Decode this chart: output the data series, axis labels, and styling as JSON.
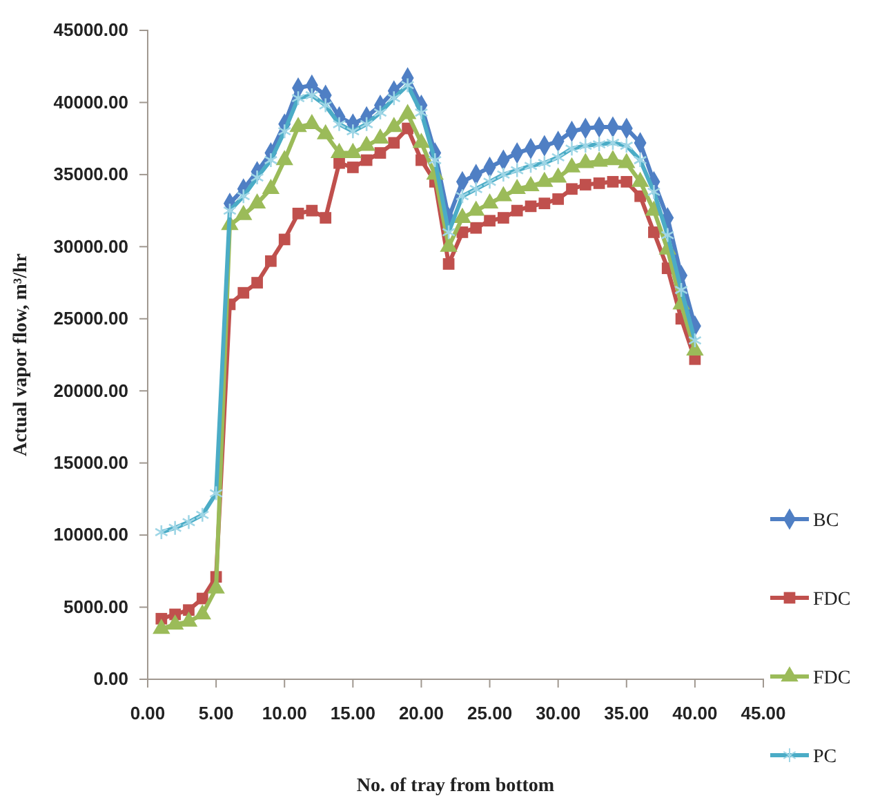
{
  "chart_data": {
    "type": "line",
    "xlabel": "No. of tray from bottom",
    "ylabel": "Actual vapor flow, m³/hr",
    "x": [
      1,
      2,
      3,
      4,
      5,
      6,
      7,
      8,
      9,
      10,
      11,
      12,
      13,
      14,
      15,
      16,
      17,
      18,
      19,
      20,
      21,
      22,
      23,
      24,
      25,
      26,
      27,
      28,
      29,
      30,
      31,
      32,
      33,
      34,
      35,
      36,
      37,
      38,
      39,
      40
    ],
    "series": [
      {
        "name": "BC",
        "color": "#4f7fc4",
        "marker": "diamond",
        "values": [
          null,
          null,
          null,
          null,
          null,
          33000,
          34000,
          35200,
          36500,
          38500,
          41000,
          41200,
          40500,
          39000,
          38500,
          39000,
          39800,
          40800,
          41700,
          39800,
          36500,
          32000,
          34500,
          35000,
          35500,
          36000,
          36500,
          36800,
          37000,
          37300,
          38000,
          38200,
          38300,
          38300,
          38200,
          37200,
          34500,
          32000,
          28000,
          24500
        ]
      },
      {
        "name": "FDC",
        "color": "#c0504d",
        "marker": "square",
        "values": [
          4200,
          4500,
          4800,
          5600,
          7100,
          26000,
          26800,
          27500,
          29000,
          30500,
          32300,
          32500,
          32000,
          35800,
          35500,
          36000,
          36500,
          37200,
          38200,
          36000,
          34500,
          28800,
          31000,
          31300,
          31800,
          32000,
          32500,
          32800,
          33000,
          33300,
          34000,
          34300,
          34400,
          34500,
          34500,
          33500,
          31000,
          28500,
          25000,
          22200
        ]
      },
      {
        "name": "FDC",
        "color": "#9bbb59",
        "marker": "triangle",
        "values": [
          3500,
          3800,
          4000,
          4500,
          6300,
          31500,
          32200,
          33000,
          34000,
          36000,
          38300,
          38500,
          37800,
          36500,
          36500,
          37000,
          37500,
          38300,
          39200,
          37200,
          35000,
          30000,
          32000,
          32500,
          33000,
          33500,
          34000,
          34200,
          34500,
          34800,
          35500,
          35800,
          35900,
          36000,
          35800,
          34500,
          32500,
          29800,
          26000,
          22800
        ]
      },
      {
        "name": "PC",
        "color": "#4bacc6",
        "marker": "cross",
        "values": [
          10200,
          10500,
          10900,
          11400,
          12900,
          32500,
          33500,
          34800,
          36000,
          38000,
          40300,
          40500,
          39800,
          38500,
          38000,
          38500,
          39300,
          40300,
          41200,
          39300,
          36000,
          31000,
          33500,
          34000,
          34500,
          35000,
          35300,
          35600,
          35800,
          36200,
          36800,
          37000,
          37100,
          37200,
          37000,
          36000,
          33800,
          30800,
          27000,
          23500
        ]
      }
    ],
    "xlim": [
      0,
      45
    ],
    "xticks": [
      {
        "value": 0,
        "label": "0.00"
      },
      {
        "value": 5,
        "label": "5.00"
      },
      {
        "value": 10,
        "label": "10.00"
      },
      {
        "value": 15,
        "label": "15.00"
      },
      {
        "value": 20,
        "label": "20.00"
      },
      {
        "value": 25,
        "label": "25.00"
      },
      {
        "value": 30,
        "label": "30.00"
      },
      {
        "value": 35,
        "label": "35.00"
      },
      {
        "value": 40,
        "label": "40.00"
      },
      {
        "value": 45,
        "label": "45.00"
      }
    ],
    "ylim": [
      0,
      45000
    ],
    "yticks": [
      {
        "value": 0,
        "label": "0.00"
      },
      {
        "value": 5000,
        "label": "5000.00"
      },
      {
        "value": 10000,
        "label": "10000.00"
      },
      {
        "value": 15000,
        "label": "15000.00"
      },
      {
        "value": 20000,
        "label": "20000.00"
      },
      {
        "value": 25000,
        "label": "25000.00"
      },
      {
        "value": 30000,
        "label": "30000.00"
      },
      {
        "value": 35000,
        "label": "35000.00"
      },
      {
        "value": 40000,
        "label": "40000.00"
      },
      {
        "value": 45000,
        "label": "45000.00"
      }
    ],
    "legend": "right",
    "grid": false,
    "line_style": "solid"
  }
}
